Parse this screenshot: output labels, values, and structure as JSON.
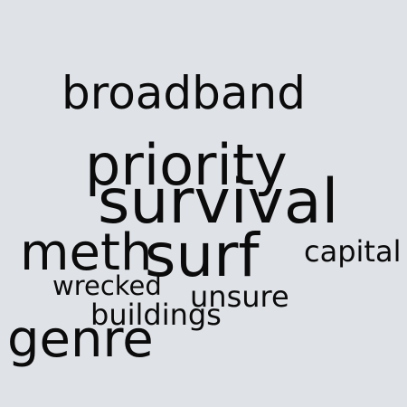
{
  "cloud": {
    "background_color": "#dfe2e7",
    "text_color": "#0b0b0b",
    "words": {
      "broadband": "broadband",
      "priority": "priority",
      "survival": "survival",
      "meth": "meth",
      "surf": "surf",
      "capital": "capital",
      "wrecked": "wrecked",
      "unsure": "unsure",
      "buildings": "buildings",
      "genre": "genre"
    }
  }
}
